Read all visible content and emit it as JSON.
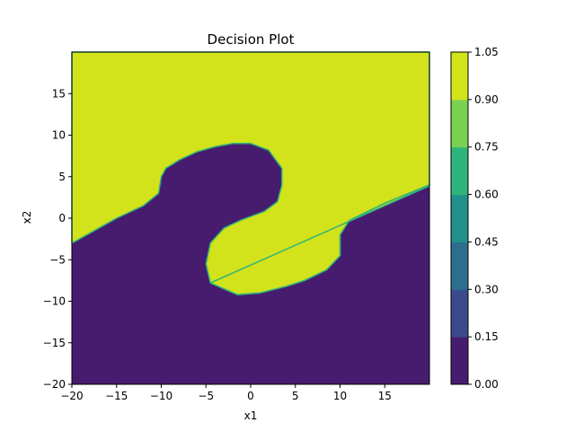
{
  "chart_data": {
    "type": "contour",
    "title": "Decision Plot",
    "xlabel": "x1",
    "ylabel": "x2",
    "xlim": [
      -20,
      20
    ],
    "ylim": [
      -20,
      20
    ],
    "xticks": [
      -20,
      -15,
      -10,
      -5,
      0,
      5,
      10,
      15
    ],
    "yticks": [
      -20,
      -15,
      -10,
      -5,
      0,
      5,
      10,
      15
    ],
    "regions": [
      {
        "value": 1,
        "color": "#d2e21b",
        "description": "upper region",
        "polygon": [
          [
            -20,
            20
          ],
          [
            20,
            20
          ],
          [
            20,
            4
          ],
          [
            15,
            1.8
          ],
          [
            11,
            -0.3
          ],
          [
            10,
            -2
          ],
          [
            10,
            -4.5
          ],
          [
            8.5,
            -6.2
          ],
          [
            6,
            -7.5
          ],
          [
            4,
            -8.2
          ],
          [
            1,
            -9
          ],
          [
            -1.5,
            -9.2
          ],
          [
            -4.5,
            -7.8
          ],
          [
            -5,
            -5.5
          ],
          [
            -4.5,
            -3
          ],
          [
            -3,
            -1.2
          ],
          [
            -1,
            -0.2
          ],
          [
            1.5,
            0.8
          ],
          [
            3,
            2
          ],
          [
            3.5,
            4
          ],
          [
            3.5,
            6
          ],
          [
            2,
            8.2
          ],
          [
            0,
            9
          ],
          [
            -2,
            9
          ],
          [
            -4,
            8.6
          ],
          [
            -6,
            8
          ],
          [
            -8,
            7
          ],
          [
            -9.5,
            6
          ],
          [
            -10,
            5
          ],
          [
            -10.3,
            3
          ],
          [
            -12,
            1.5
          ],
          [
            -15,
            0
          ],
          [
            -20,
            -3
          ]
        ]
      },
      {
        "value": 1,
        "color": "#d2e21b",
        "description": "center region",
        "polygon": [
          [
            -4.5,
            -7.8
          ],
          [
            -1.5,
            -9.2
          ],
          [
            1,
            -9
          ],
          [
            4,
            -8.2
          ],
          [
            6,
            -7.5
          ],
          [
            8.5,
            -6.2
          ],
          [
            10,
            -4.5
          ],
          [
            10,
            -2
          ],
          [
            11,
            -0.3
          ],
          [
            15,
            1.8
          ],
          [
            20,
            4
          ],
          [
            20,
            3.9
          ]
        ]
      }
    ],
    "background_color": "#471c6e",
    "colorbar": {
      "ticks": [
        "0.00",
        "0.15",
        "0.30",
        "0.45",
        "0.60",
        "0.75",
        "0.90",
        "1.05"
      ],
      "colors": [
        "#471c6e",
        "#3b4a8b",
        "#2d6e8e",
        "#21918c",
        "#2fb47c",
        "#7ad151",
        "#d2e21b"
      ]
    }
  }
}
